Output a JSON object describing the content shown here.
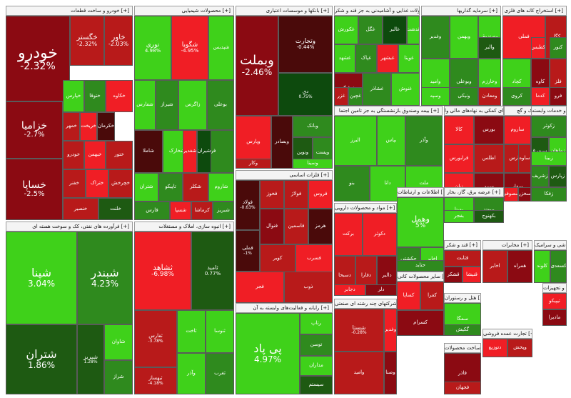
{
  "colors": {
    "deep_red": "#8b0a12",
    "red": "#b81a1a",
    "bright_red": "#f01e25",
    "dark_green": "#1e5a12",
    "green": "#2f8a1e",
    "bright_green": "#3fd11a",
    "maroon": "#4a0a0a",
    "dark": "#0d4a0d"
  },
  "sectors": [
    {
      "title": "خودرو و ساخت قطعات [+]",
      "tiles": [
        {
          "name": "خودرو",
          "change": "-2.32%"
        },
        {
          "name": "خگستر",
          "change": "-2.32%"
        },
        {
          "name": "خاور",
          "change": "-2.03%"
        },
        {
          "name": "خزامیا",
          "change": "-2.7%"
        },
        {
          "name": "خساپا",
          "change": "-2.5%"
        },
        {
          "name": "خپارس",
          "change": ""
        },
        {
          "name": "ختوقا",
          "change": ""
        },
        {
          "name": "خکاوه",
          "change": ""
        },
        {
          "name": "خمهر",
          "change": ""
        },
        {
          "name": "خریخت",
          "change": ""
        },
        {
          "name": "خکرمان",
          "change": ""
        },
        {
          "name": "خودرو",
          "change": ""
        },
        {
          "name": "خبهمن",
          "change": ""
        },
        {
          "name": "ختور",
          "change": ""
        },
        {
          "name": "خفنر",
          "change": ""
        },
        {
          "name": "ختراک",
          "change": ""
        },
        {
          "name": "خچرخش",
          "change": ""
        },
        {
          "name": "خنصیر",
          "change": ""
        },
        {
          "name": "خلنت",
          "change": ""
        }
      ]
    },
    {
      "title": "محصولات شیمیایی [+]",
      "tiles": [
        {
          "name": "نوری",
          "change": "4.98%"
        },
        {
          "name": "شگویا",
          "change": "-4.95%"
        },
        {
          "name": "شپدیس",
          "change": ""
        },
        {
          "name": "شفارس",
          "change": ""
        },
        {
          "name": "شیراز",
          "change": ""
        },
        {
          "name": "زاگرس",
          "change": ""
        },
        {
          "name": "بوعلی",
          "change": ""
        },
        {
          "name": "شاملا",
          "change": ""
        },
        {
          "name": "شخارک",
          "change": ""
        },
        {
          "name": "فن",
          "change": ""
        },
        {
          "name": "شتران",
          "change": ""
        },
        {
          "name": "تاپیکو",
          "change": ""
        },
        {
          "name": "شکلر",
          "change": ""
        },
        {
          "name": "شاروم",
          "change": ""
        },
        {
          "name": "فارس",
          "change": ""
        },
        {
          "name": "شسپا",
          "change": ""
        },
        {
          "name": "کرماشا",
          "change": ""
        },
        {
          "name": "شبریز",
          "change": ""
        },
        {
          "name": "شغدیر",
          "change": ""
        },
        {
          "name": "شیران",
          "change": ""
        }
      ]
    },
    {
      "title": "بانکها و موسسات اعتباری [+]",
      "tiles": [
        {
          "name": "وبملت",
          "change": "-2.46%"
        },
        {
          "name": "وتجارت",
          "change": "-0.44%"
        },
        {
          "name": "دی",
          "change": "0.75%"
        },
        {
          "name": "وپارس",
          "change": ""
        },
        {
          "name": "وبصادر",
          "change": ""
        },
        {
          "name": "وبانک",
          "change": ""
        },
        {
          "name": "ونوین",
          "change": ""
        },
        {
          "name": "وپست",
          "change": ""
        },
        {
          "name": "وسینا",
          "change": ""
        },
        {
          "name": "وکار",
          "change": ""
        }
      ]
    },
    {
      "title": "محصولات غذایی و آشامیدنی به جز قند و شکر [+]",
      "tiles": [
        {
          "name": "غکورش",
          "change": ""
        },
        {
          "name": "غگل",
          "change": ""
        },
        {
          "name": "غالبر",
          "change": ""
        },
        {
          "name": "غدشت",
          "change": ""
        },
        {
          "name": "غشهد",
          "change": ""
        },
        {
          "name": "غپاک",
          "change": ""
        },
        {
          "name": "غبشهر",
          "change": ""
        },
        {
          "name": "غویتا",
          "change": ""
        },
        {
          "name": "غمارگ",
          "change": ""
        },
        {
          "name": "غشاذر",
          "change": ""
        },
        {
          "name": "غنوش",
          "change": ""
        },
        {
          "name": "غزر",
          "change": ""
        },
        {
          "name": "غچین",
          "change": ""
        }
      ]
    },
    {
      "title": "سرمایه گذاریها [+]",
      "tiles": [
        {
          "name": "وغدیر",
          "change": ""
        },
        {
          "name": "وبهمن",
          "change": ""
        },
        {
          "name": "وصندوق",
          "change": ""
        },
        {
          "name": "وامید",
          "change": ""
        },
        {
          "name": "وبوعلی",
          "change": ""
        },
        {
          "name": "وخارزم",
          "change": ""
        },
        {
          "name": "وسپه",
          "change": ""
        },
        {
          "name": "ونیکی",
          "change": ""
        },
        {
          "name": "ومعادن",
          "change": ""
        },
        {
          "name": "والبر",
          "change": ""
        }
      ]
    },
    {
      "title": "استخراج کانه های فلزی [+]",
      "tiles": [
        {
          "name": "فملی",
          "change": ""
        },
        {
          "name": "کگل",
          "change": ""
        },
        {
          "name": "کچاد",
          "change": ""
        },
        {
          "name": "کاوه",
          "change": ""
        },
        {
          "name": "فلز",
          "change": ""
        },
        {
          "name": "کروی",
          "change": ""
        },
        {
          "name": "کدما",
          "change": ""
        },
        {
          "name": "فرو",
          "change": ""
        },
        {
          "name": "کنور",
          "change": ""
        },
        {
          "name": "کطبس",
          "change": ""
        }
      ]
    },
    {
      "title": "بیمه وصندوق بازنشستگی به جز تامین اجتما [+]",
      "tiles": [
        {
          "name": "البرز",
          "change": ""
        },
        {
          "name": "بپاس",
          "change": ""
        },
        {
          "name": "وآذر",
          "change": ""
        },
        {
          "name": "بنو",
          "change": ""
        },
        {
          "name": "دانا",
          "change": ""
        },
        {
          "name": "ملت",
          "change": ""
        }
      ]
    },
    {
      "title": "فعالیتهای کمکی به نهادهای مالی وا [+]",
      "tiles": [
        {
          "name": "کالا",
          "change": ""
        },
        {
          "name": "بورس",
          "change": ""
        },
        {
          "name": "فرابورس",
          "change": ""
        },
        {
          "name": "اطلس",
          "change": ""
        },
        {
          "name": "نیان",
          "change": ""
        },
        {
          "name": "سپید",
          "change": ""
        },
        {
          "name": "ارزش",
          "change": ""
        },
        {
          "name": "ثمر",
          "change": ""
        },
        {
          "name": "تملت",
          "change": ""
        }
      ]
    },
    {
      "title": "سیمان، آهک و گچ [+]",
      "tiles": [
        {
          "name": "ساروم",
          "change": ""
        },
        {
          "name": "سفارس",
          "change": ""
        },
        {
          "name": "سفار",
          "change": ""
        },
        {
          "name": "سصوفی",
          "change": ""
        },
        {
          "name": "سخزر",
          "change": ""
        },
        {
          "name": "ساوه",
          "change": ""
        }
      ]
    },
    {
      "title": "زراعت و خدمات وابسته [+]",
      "tiles": [
        {
          "name": "زکوثر",
          "change": ""
        },
        {
          "name": "سیمرغ",
          "change": ""
        },
        {
          "name": "زماهان",
          "change": ""
        },
        {
          "name": "زشریف",
          "change": ""
        },
        {
          "name": "زپارس",
          "change": ""
        },
        {
          "name": "زفکا",
          "change": ""
        },
        {
          "name": "زبینا",
          "change": ""
        }
      ]
    },
    {
      "title": "فرآورده های نفتی، کک و سوخت هسته ای [+]",
      "tiles": [
        {
          "name": "شپنا",
          "change": "3.04%"
        },
        {
          "name": "شبندر",
          "change": "4.23%"
        },
        {
          "name": "شتران",
          "change": "1.86%"
        },
        {
          "name": "شبریز",
          "change": "1.28%"
        },
        {
          "name": "شاوان",
          "change": ""
        },
        {
          "name": "شراز",
          "change": ""
        }
      ]
    },
    {
      "title": "انبوه سازی، املاک و مستغلات [+]",
      "tiles": [
        {
          "name": "ثشاهد",
          "change": "-6.98%"
        },
        {
          "name": "ثامید",
          "change": "0.77%"
        },
        {
          "name": "ثفارس",
          "change": "-3.78%"
        },
        {
          "name": "ثبهساز",
          "change": "-4.18%"
        },
        {
          "name": "ثاخت",
          "change": ""
        },
        {
          "name": "ثنوسا",
          "change": ""
        },
        {
          "name": "وآذر",
          "change": ""
        },
        {
          "name": "ثغرب",
          "change": ""
        }
      ]
    },
    {
      "title": "فلزات اساسی [+]",
      "tiles": [
        {
          "name": "فولاد",
          "change": "-0.63%"
        },
        {
          "name": "فملی",
          "change": "-1%"
        },
        {
          "name": "فخوز",
          "change": ""
        },
        {
          "name": "فولاژ",
          "change": ""
        },
        {
          "name": "فروس",
          "change": ""
        },
        {
          "name": "فنوال",
          "change": ""
        },
        {
          "name": "فاسمین",
          "change": ""
        },
        {
          "name": "هرمز",
          "change": ""
        },
        {
          "name": "کویر",
          "change": ""
        },
        {
          "name": "فسرب",
          "change": ""
        },
        {
          "name": "فجر",
          "change": ""
        },
        {
          "name": "ذوب",
          "change": ""
        }
      ]
    },
    {
      "title": "رایانه و فعالیت‌های وابسته به آن [+]",
      "tiles": [
        {
          "name": "پی پاد",
          "change": "4.97%"
        },
        {
          "name": "رتاپ",
          "change": ""
        },
        {
          "name": "توسن",
          "change": ""
        },
        {
          "name": "مداران",
          "change": ""
        },
        {
          "name": "سیستم",
          "change": ""
        }
      ]
    },
    {
      "title": "مواد و محصولات دارویی [+]",
      "tiles": [
        {
          "name": "برکت",
          "change": ""
        },
        {
          "name": "دکوثر",
          "change": ""
        },
        {
          "name": "دسبحا",
          "change": ""
        },
        {
          "name": "دفارا",
          "change": ""
        },
        {
          "name": "دالبر",
          "change": ""
        },
        {
          "name": "دجابر",
          "change": ""
        },
        {
          "name": "دلر",
          "change": ""
        }
      ]
    },
    {
      "title": "شرکتهای چند رشته ای صنعتی [+]",
      "tiles": [
        {
          "name": "شستا",
          "change": "-0.28%"
        },
        {
          "name": "وامید",
          "change": ""
        },
        {
          "name": "وغدیر",
          "change": ""
        },
        {
          "name": "وصنا",
          "change": ""
        }
      ]
    },
    {
      "title": "عرضه برق، گاز، بخار [+]",
      "tiles": [
        {
          "name": "بمپنا",
          "change": ""
        },
        {
          "name": "بپیوند",
          "change": ""
        },
        {
          "name": "بفجر",
          "change": ""
        },
        {
          "name": "بکهنوج",
          "change": ""
        }
      ]
    },
    {
      "title": "اطلاعات و ارتباطات [+]",
      "tiles": [
        {
          "name": "وهمل",
          "change": "5%"
        },
        {
          "name": "حکشتی",
          "change": ""
        },
        {
          "name": "اخابر",
          "change": ""
        },
        {
          "name": "حتاید",
          "change": ""
        }
      ]
    },
    {
      "title": "سایر محصولات کانی [+]",
      "tiles": [
        {
          "name": "کساپا",
          "change": ""
        },
        {
          "name": "کفرا",
          "change": ""
        },
        {
          "name": "کسرام",
          "change": ""
        }
      ]
    },
    {
      "title": "قند و شکر [+]",
      "tiles": [
        {
          "name": "قثابت",
          "change": ""
        },
        {
          "name": "قشکر",
          "change": ""
        },
        {
          "name": "قنیشا",
          "change": ""
        }
      ]
    },
    {
      "title": "هتل و رستوران [+]",
      "tiles": [
        {
          "name": "سمگا",
          "change": ""
        },
        {
          "name": "گکیش",
          "change": ""
        }
      ]
    },
    {
      "title": "ساخت محصولات [+]",
      "tiles": [
        {
          "name": "فاذر",
          "change": ""
        },
        {
          "name": "فجهان",
          "change": ""
        }
      ]
    },
    {
      "title": "تجارت عمده فروشی [+]",
      "tiles": [
        {
          "name": "دتوزیع",
          "change": ""
        },
        {
          "name": "وپخش",
          "change": ""
        }
      ]
    },
    {
      "title": "مخابرات [+]",
      "tiles": [
        {
          "name": "اخابر",
          "change": ""
        },
        {
          "name": "همراه",
          "change": ""
        }
      ]
    },
    {
      "title": "کاشی و سرامیک [+]",
      "tiles": [
        {
          "name": "کلوند",
          "change": ""
        },
        {
          "name": "کسعدی",
          "change": ""
        }
      ]
    },
    {
      "title": "ماشین آلات و تجهیزات [+]",
      "tiles": [
        {
          "name": "تیپیکو",
          "change": ""
        },
        {
          "name": "مادیرا",
          "change": ""
        }
      ]
    }
  ]
}
